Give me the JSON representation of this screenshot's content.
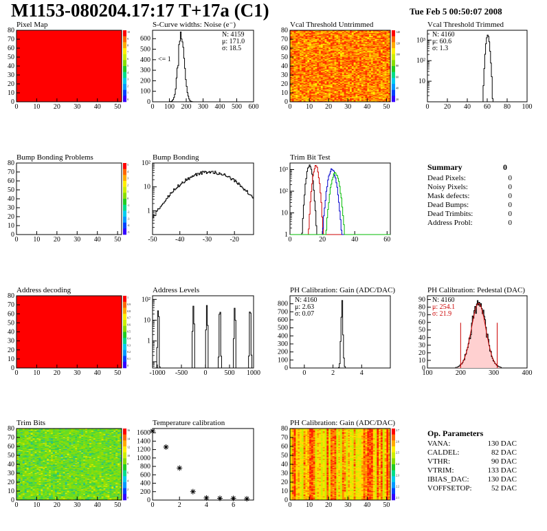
{
  "header": {
    "title": "M1153-080204.17:17 T+17a (C1)",
    "date": "Tue Feb  5 00:50:07 2008"
  },
  "palette": {
    "rainbow": [
      "#3300ff",
      "#0040ff",
      "#0099ff",
      "#00ccee",
      "#00dd88",
      "#22cc22",
      "#88dd00",
      "#ccee00",
      "#ffee00",
      "#ffaa00",
      "#ff6600",
      "#ff0000"
    ],
    "hist_line": "#000000",
    "trim_red": "#cc0000",
    "trim_blue": "#0000cc",
    "trim_green": "#00bb00",
    "stat_red": "#cc0000"
  },
  "panels": [
    {
      "id": "pixel-map",
      "title": "Pixel Map",
      "chart_data": {
        "type": "heatmap",
        "xlim": [
          0,
          52
        ],
        "ylim": [
          0,
          80
        ],
        "fill": "#ff0000",
        "xticks": [
          0,
          10,
          20,
          30,
          40,
          50
        ],
        "yticks": [
          0,
          10,
          20,
          30,
          40,
          50,
          60,
          70,
          80
        ],
        "zticks": [
          "10",
          "9",
          "8",
          "7",
          "6",
          "5",
          "4",
          "3",
          "2",
          "1",
          "0"
        ]
      }
    },
    {
      "id": "scurve-noise",
      "title": "S-Curve widths: Noise (e⁻)",
      "chart_data": {
        "type": "histogram",
        "xlim": [
          0,
          600
        ],
        "ylim": [
          0,
          680
        ],
        "xticks": [
          0,
          100,
          200,
          300,
          400,
          500,
          600
        ],
        "yticks": [
          0,
          100,
          200,
          300,
          400,
          500,
          600
        ],
        "peak": 171.0,
        "sigma": 18.5,
        "amplitude": 650,
        "label": "<= 1"
      },
      "stats": [
        "N:  4159",
        "μ:  171.0",
        "σ:  18.5"
      ]
    },
    {
      "id": "vcal-untrimmed",
      "title": "Vcal Threshold Untrimmed",
      "chart_data": {
        "type": "heatmap",
        "xlim": [
          0,
          52
        ],
        "ylim": [
          0,
          80
        ],
        "xticks": [
          0,
          10,
          20,
          30,
          40,
          50
        ],
        "yticks": [
          0,
          10,
          20,
          30,
          40,
          50,
          60,
          70,
          80
        ],
        "zticks": [
          "140",
          "120",
          "100",
          "80",
          "60",
          "40",
          "20"
        ]
      }
    },
    {
      "id": "vcal-trimmed",
      "title": "Vcal Threshold Trimmed",
      "chart_data": {
        "type": "histogram",
        "log_y": true,
        "xlim": [
          0,
          100
        ],
        "ylim": [
          1,
          3000
        ],
        "xticks": [
          0,
          20,
          40,
          60,
          80,
          100
        ],
        "yticks": [
          "10",
          "10²",
          "10³"
        ],
        "peak": 60.6,
        "sigma": 1.3,
        "amplitude": 1600
      },
      "stats": [
        "N:  4160",
        "μ:  60.6",
        "σ:   1.3"
      ]
    },
    {
      "id": "bump-problems",
      "title": "Bump Bonding Problems",
      "chart_data": {
        "type": "heatmap",
        "xlim": [
          0,
          52
        ],
        "ylim": [
          0,
          80
        ],
        "fill": "#ffffff",
        "xticks": [
          0,
          10,
          20,
          30,
          40,
          50
        ],
        "yticks": [
          0,
          10,
          20,
          30,
          40,
          50,
          60,
          70,
          80
        ],
        "zticks": [
          "5",
          "4",
          "3",
          "2",
          "1",
          "0",
          "-1",
          "-2",
          "-3",
          "-4",
          "-5"
        ]
      }
    },
    {
      "id": "bump-bonding",
      "title": "Bump Bonding",
      "chart_data": {
        "type": "histogram",
        "log_y": true,
        "xlim": [
          -50,
          -13
        ],
        "ylim": [
          1,
          1000
        ],
        "xticks": [
          -50,
          -40,
          -30,
          -20
        ],
        "yticks": [
          "1",
          "10",
          "10²"
        ],
        "peak": -29,
        "sigma": 7.0,
        "amplitude": 420
      }
    },
    {
      "id": "trim-bit-test",
      "title": "Trim Bit Test",
      "chart_data": {
        "type": "histogram",
        "log_y": true,
        "xlim": [
          0,
          62
        ],
        "ylim": [
          1,
          2000
        ],
        "xticks": [
          0,
          20,
          40,
          60
        ],
        "yticks": [
          "1",
          "10",
          "10²",
          "10³"
        ],
        "series": [
          {
            "peak": 12,
            "sigma": 1.2,
            "amplitude": 1500,
            "color": "#000000"
          },
          {
            "peak": 16,
            "sigma": 1.2,
            "amplitude": 1400,
            "color": "#cc0000"
          },
          {
            "peak": 26,
            "sigma": 1.6,
            "amplitude": 1000,
            "color": "#0000cc"
          },
          {
            "peak": 28,
            "sigma": 1.6,
            "amplitude": 700,
            "color": "#00bb00"
          }
        ]
      }
    },
    {
      "id": "address-decoding",
      "title": "Address decoding",
      "chart_data": {
        "type": "heatmap",
        "xlim": [
          0,
          52
        ],
        "ylim": [
          0,
          80
        ],
        "fill": "#ff0000",
        "xticks": [
          0,
          10,
          20,
          30,
          40,
          50
        ],
        "yticks": [
          0,
          10,
          20,
          30,
          40,
          50,
          60,
          70,
          80
        ],
        "zticks": [
          "1",
          "0.9",
          "0.8",
          "0.7",
          "0.6",
          "0.5",
          "0.4",
          "0.3",
          "0.2",
          "0.1",
          "0"
        ]
      }
    },
    {
      "id": "address-levels",
      "title": "Address Levels",
      "chart_data": {
        "type": "histogram",
        "log_y": true,
        "xlim": [
          -1100,
          1000
        ],
        "ylim": [
          0.5,
          1500
        ],
        "xticks": [
          -1000,
          -500,
          0,
          500,
          1000
        ],
        "yticks": [
          "1",
          "10",
          "10²"
        ],
        "peaks": [
          -980,
          -250,
          30,
          300,
          610,
          930
        ],
        "amplitudes": [
          400,
          500,
          500,
          400,
          400,
          400
        ]
      }
    },
    {
      "id": "ph-gain",
      "title": "PH Calibration: Gain (ADC/DAC)",
      "chart_data": {
        "type": "histogram",
        "xlim": [
          -1,
          6
        ],
        "ylim": [
          0,
          900
        ],
        "xticks": [
          0,
          2,
          4
        ],
        "yticks": [
          0,
          100,
          200,
          300,
          400,
          500,
          600,
          700,
          800
        ],
        "peak": 2.63,
        "sigma": 0.07,
        "amplitude": 830
      },
      "stats": [
        "N:  4160",
        "μ:  2.63",
        "σ:  0.07"
      ]
    },
    {
      "id": "ph-pedestal",
      "title": "PH Calibration: Pedestal (DAC)",
      "chart_data": {
        "type": "histogram",
        "xlim": [
          100,
          400
        ],
        "ylim": [
          0,
          95
        ],
        "xticks": [
          100,
          200,
          300,
          400
        ],
        "yticks": [
          0,
          10,
          20,
          30,
          40,
          50,
          60,
          70,
          80,
          90
        ],
        "peak": 254.1,
        "sigma": 21.9,
        "amplitude": 85,
        "fit_range": [
          200,
          310
        ]
      },
      "stats": [
        "N:  4160",
        "μ:  254.1",
        "σ:  21.9"
      ]
    },
    {
      "id": "trim-bits",
      "title": "Trim Bits",
      "chart_data": {
        "type": "heatmap",
        "xlim": [
          0,
          52
        ],
        "ylim": [
          0,
          80
        ],
        "xticks": [
          0,
          10,
          20,
          30,
          40,
          50
        ],
        "yticks": [
          0,
          10,
          20,
          30,
          40,
          50,
          60,
          70,
          80
        ],
        "zticks": [
          "16",
          "14",
          "12",
          "10",
          "8",
          "6",
          "4",
          "2",
          "0"
        ]
      }
    },
    {
      "id": "temperature-calibration",
      "title": "Temperature calibration",
      "chart_data": {
        "type": "scatter",
        "xlim": [
          0,
          7.5
        ],
        "ylim": [
          0,
          1700
        ],
        "xticks": [
          0,
          2,
          4,
          6
        ],
        "yticks": [
          0,
          200,
          400,
          600,
          800,
          1000,
          1200,
          1400,
          1600
        ],
        "x": [
          0,
          1,
          2,
          3,
          4,
          5,
          6,
          7
        ],
        "y": [
          1640,
          1260,
          760,
          200,
          50,
          40,
          40,
          30
        ]
      }
    },
    {
      "id": "ph-gain-map",
      "title": "PH Calibration: Gain (ADC/DAC)",
      "chart_data": {
        "type": "heatmap",
        "xlim": [
          0,
          52
        ],
        "ylim": [
          0,
          80
        ],
        "xticks": [
          0,
          10,
          20,
          30,
          40,
          50
        ],
        "yticks": [
          0,
          10,
          20,
          30,
          40,
          50,
          60,
          70,
          80
        ],
        "zticks": [
          "2.7",
          "2.6",
          "2.5",
          "2.4",
          "2.3",
          "2.2",
          "2.1"
        ]
      }
    }
  ],
  "summary": {
    "title": "Summary",
    "total": "0",
    "rows": [
      {
        "label": "Dead Pixels:",
        "value": "0"
      },
      {
        "label": "Noisy Pixels:",
        "value": "0"
      },
      {
        "label": "Mask defects:",
        "value": "0"
      },
      {
        "label": "Dead Bumps:",
        "value": "0"
      },
      {
        "label": "Dead Trimbits:",
        "value": "0"
      },
      {
        "label": "Address Probl:",
        "value": "0"
      }
    ]
  },
  "op_params": {
    "title": "Op. Parameters",
    "rows": [
      {
        "label": "VANA:",
        "value": "130 DAC"
      },
      {
        "label": "CALDEL:",
        "value": "82 DAC"
      },
      {
        "label": "VTHR:",
        "value": "90 DAC"
      },
      {
        "label": "VTRIM:",
        "value": "133 DAC"
      },
      {
        "label": "IBIAS_DAC:",
        "value": "130 DAC"
      },
      {
        "label": "VOFFSETOP:",
        "value": "52 DAC"
      }
    ]
  }
}
